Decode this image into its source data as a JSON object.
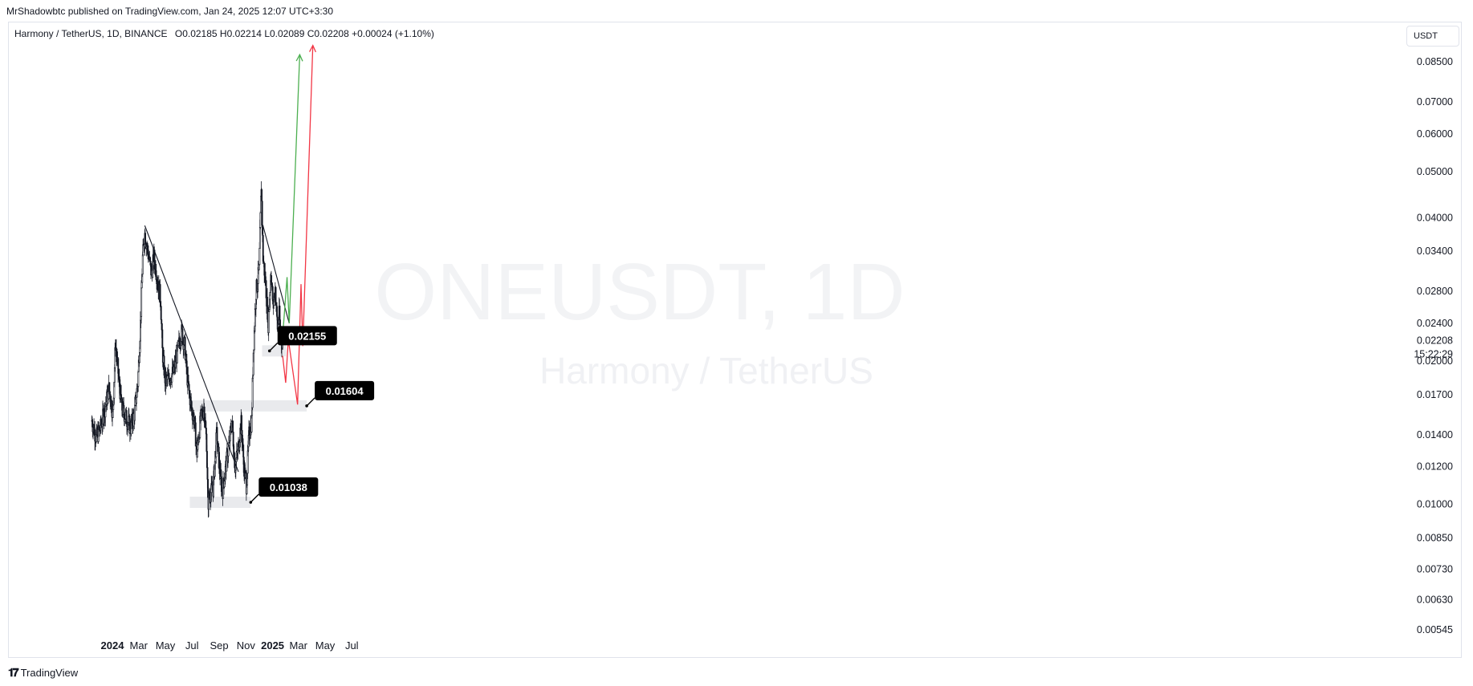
{
  "publish_info": "MrShadowbtc published on TradingView.com, Jan 24, 2025 12:07 UTC+3:30",
  "legend": {
    "symbol": "Harmony / TetherUS, 1D, BINANCE",
    "open": "O0.02185",
    "high": "H0.02214",
    "low": "L0.02089",
    "close": "C0.02208",
    "change": "+0.00024 (+1.10%)"
  },
  "currency_button": "USDT",
  "watermark": {
    "ticker": "ONEUSDT, 1D",
    "name": "Harmony / TetherUS"
  },
  "current_price": "0.02208",
  "countdown": "15:22:29",
  "footer_brand": "TradingView",
  "colors": {
    "up_path": "#4caf50",
    "down_path": "#f23645",
    "trendline": "#131722",
    "zone": "#e9eaed",
    "candle": "#131722",
    "label_bg": "#000000"
  },
  "chart_data": {
    "type": "candlestick",
    "title": "Harmony / TetherUS, 1D, BINANCE",
    "y_scale": "log",
    "y_ticks": [
      "0.08500",
      "0.07000",
      "0.06000",
      "0.05000",
      "0.04000",
      "0.03400",
      "0.02800",
      "0.02400",
      "0.02000",
      "0.01700",
      "0.01400",
      "0.01200",
      "0.01000",
      "0.00850",
      "0.00730",
      "0.00630",
      "0.00545"
    ],
    "x_ticks": [
      {
        "label": "2024",
        "date": "2024-01-01",
        "bold": true
      },
      {
        "label": "Mar",
        "date": "2024-03-01"
      },
      {
        "label": "May",
        "date": "2024-05-01"
      },
      {
        "label": "Jul",
        "date": "2024-07-01"
      },
      {
        "label": "Sep",
        "date": "2024-09-01"
      },
      {
        "label": "Nov",
        "date": "2024-11-01"
      },
      {
        "label": "2025",
        "date": "2025-01-01",
        "bold": true
      },
      {
        "label": "Mar",
        "date": "2025-03-01"
      },
      {
        "label": "May",
        "date": "2025-05-01"
      },
      {
        "label": "Jul",
        "date": "2025-07-01"
      }
    ],
    "price_path": [
      [
        "2023-11-15",
        0.015
      ],
      [
        "2023-11-25",
        0.0138
      ],
      [
        "2023-12-05",
        0.0145
      ],
      [
        "2023-12-14",
        0.0158
      ],
      [
        "2023-12-24",
        0.0175
      ],
      [
        "2024-01-02",
        0.0155
      ],
      [
        "2024-01-08",
        0.0218
      ],
      [
        "2024-01-15",
        0.0185
      ],
      [
        "2024-01-22",
        0.016
      ],
      [
        "2024-02-01",
        0.0152
      ],
      [
        "2024-02-12",
        0.0145
      ],
      [
        "2024-02-20",
        0.0155
      ],
      [
        "2024-02-28",
        0.018
      ],
      [
        "2024-03-05",
        0.024
      ],
      [
        "2024-03-10",
        0.033
      ],
      [
        "2024-03-15",
        0.037
      ],
      [
        "2024-03-22",
        0.034
      ],
      [
        "2024-03-30",
        0.0305
      ],
      [
        "2024-04-05",
        0.033
      ],
      [
        "2024-04-12",
        0.03
      ],
      [
        "2024-04-20",
        0.027
      ],
      [
        "2024-04-24",
        0.021
      ],
      [
        "2024-05-01",
        0.018
      ],
      [
        "2024-05-10",
        0.0185
      ],
      [
        "2024-05-20",
        0.019
      ],
      [
        "2024-05-31",
        0.0215
      ],
      [
        "2024-06-07",
        0.023
      ],
      [
        "2024-06-14",
        0.0215
      ],
      [
        "2024-06-21",
        0.018
      ],
      [
        "2024-06-29",
        0.016
      ],
      [
        "2024-07-06",
        0.015
      ],
      [
        "2024-07-12",
        0.0128
      ],
      [
        "2024-07-20",
        0.015
      ],
      [
        "2024-07-28",
        0.016
      ],
      [
        "2024-08-03",
        0.0135
      ],
      [
        "2024-08-06",
        0.01
      ],
      [
        "2024-08-10",
        0.0105
      ],
      [
        "2024-08-18",
        0.0108
      ],
      [
        "2024-08-26",
        0.014
      ],
      [
        "2024-09-02",
        0.0118
      ],
      [
        "2024-09-08",
        0.0106
      ],
      [
        "2024-09-16",
        0.012
      ],
      [
        "2024-09-24",
        0.0135
      ],
      [
        "2024-09-30",
        0.015
      ],
      [
        "2024-10-07",
        0.012
      ],
      [
        "2024-10-14",
        0.013
      ],
      [
        "2024-10-21",
        0.0148
      ],
      [
        "2024-10-28",
        0.0118
      ],
      [
        "2024-11-02",
        0.011
      ],
      [
        "2024-11-08",
        0.014
      ],
      [
        "2024-11-14",
        0.015
      ],
      [
        "2024-11-18",
        0.021
      ],
      [
        "2024-11-24",
        0.028
      ],
      [
        "2024-12-01",
        0.031
      ],
      [
        "2024-12-06",
        0.047
      ],
      [
        "2024-12-10",
        0.033
      ],
      [
        "2024-12-16",
        0.029
      ],
      [
        "2024-12-22",
        0.024
      ],
      [
        "2024-12-28",
        0.031
      ],
      [
        "2025-01-02",
        0.026
      ],
      [
        "2025-01-07",
        0.0285
      ],
      [
        "2025-01-12",
        0.0235
      ],
      [
        "2025-01-16",
        0.025
      ],
      [
        "2025-01-20",
        0.022
      ],
      [
        "2025-01-24",
        0.0221
      ]
    ],
    "annotations": {
      "horizontal_zones": [
        {
          "from": "2024-06-26",
          "to": "2024-11-12",
          "price": 0.0101
        },
        {
          "from": "2024-06-28",
          "to": "2025-03-20",
          "price": 0.0161
        },
        {
          "from": "2024-12-08",
          "to": "2025-02-01",
          "price": 0.021
        }
      ],
      "price_labels": [
        "0.01038",
        "0.01604",
        "0.02155"
      ],
      "trendlines": [
        {
          "from": [
            "2024-03-15",
            0.0385
          ],
          "to": [
            "2024-10-15",
            0.0117
          ]
        },
        {
          "from": [
            "2024-12-10",
            0.0385
          ],
          "to": [
            "2025-02-08",
            0.024
          ]
        }
      ],
      "bullish_scenario": [
        [
          "2025-01-24",
          0.0225
        ],
        [
          "2025-02-03",
          0.03
        ],
        [
          "2025-02-08",
          0.024
        ],
        [
          "2025-03-04",
          0.088
        ]
      ],
      "bearish_scenario": [
        [
          "2025-01-24",
          0.0205
        ],
        [
          "2025-01-31",
          0.018
        ],
        [
          "2025-02-06",
          0.0222
        ],
        [
          "2025-02-27",
          0.0162
        ],
        [
          "2025-03-07",
          0.029
        ],
        [
          "2025-03-11",
          0.0215
        ],
        [
          "2025-04-03",
          0.092
        ]
      ]
    }
  }
}
